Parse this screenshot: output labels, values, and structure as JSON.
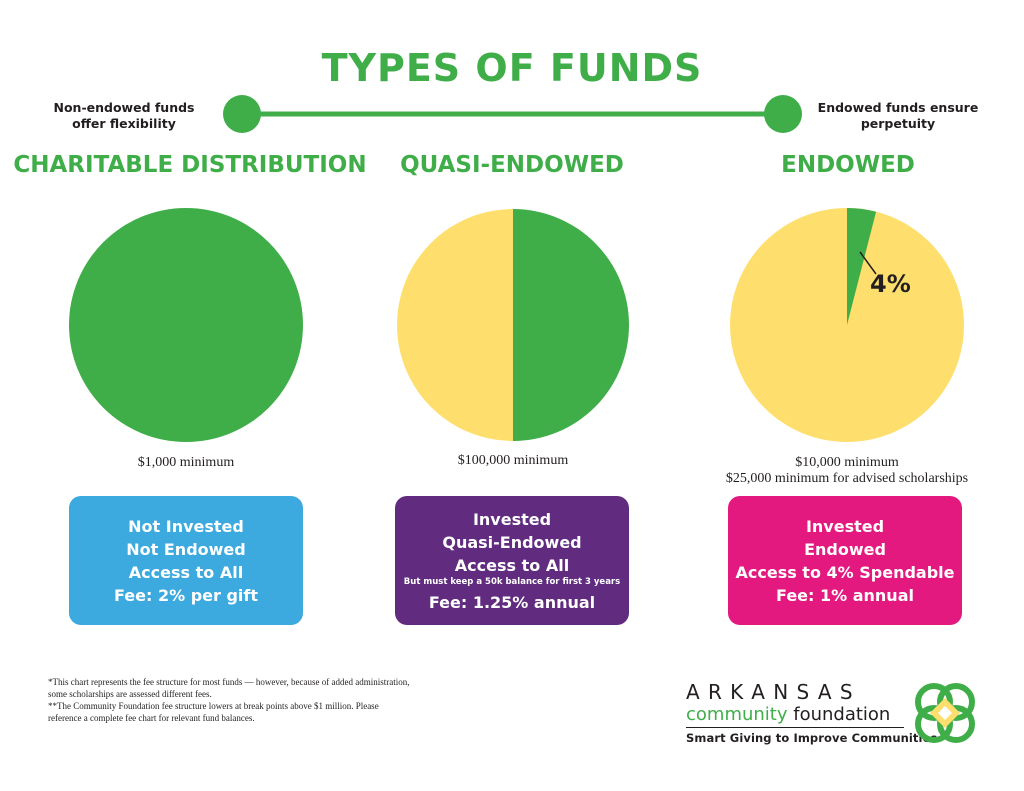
{
  "title": "TYPES OF FUNDS",
  "timeline": {
    "left_note": [
      "Non-endowed funds",
      "offer flexibility"
    ],
    "right_note": [
      "Endowed funds ensure",
      "perpetuity"
    ]
  },
  "colors": {
    "green": "#3fae49",
    "yellow": "#fedf6e",
    "blue": "#3ca9df",
    "purple": "#612c7f",
    "magenta": "#e4197f"
  },
  "funds": [
    {
      "title": "CHARITABLE DISTRIBUTION",
      "minimum": [
        "$1,000 minimum"
      ],
      "box": [
        "Not Invested",
        "Not Endowed",
        "Access to All",
        "Fee: 2% per gift"
      ],
      "spendable_fraction": 1.0
    },
    {
      "title": "QUASI-ENDOWED",
      "minimum": [
        "$100,000 minimum"
      ],
      "box": [
        "Invested",
        "Quasi-Endowed",
        "Access to All",
        "But must keep a 50k balance for first 3 years",
        "Fee: 1.25% annual"
      ],
      "spendable_fraction": 0.5
    },
    {
      "title": "ENDOWED",
      "minimum": [
        "$10,000 minimum",
        "$25,000 minimum for advised scholarships"
      ],
      "box": [
        "Invested",
        "Endowed",
        "Access to 4% Spendable",
        "Fee: 1% annual"
      ],
      "spendable_fraction": 0.04,
      "slice_label": "4%"
    }
  ],
  "footnotes": [
    "*This chart represents the fee structure for most funds — however, because of added administration,",
    "some scholarships are assessed different fees.",
    "**The Community Foundation fee structure lowers at break points above $1 million. Please",
    "reference a complete fee chart for relevant fund balances."
  ],
  "logo": {
    "name": "ARKANSAS",
    "sub_green": "community",
    "sub_dark": " foundation",
    "tagline": "Smart Giving to Improve Communities"
  }
}
